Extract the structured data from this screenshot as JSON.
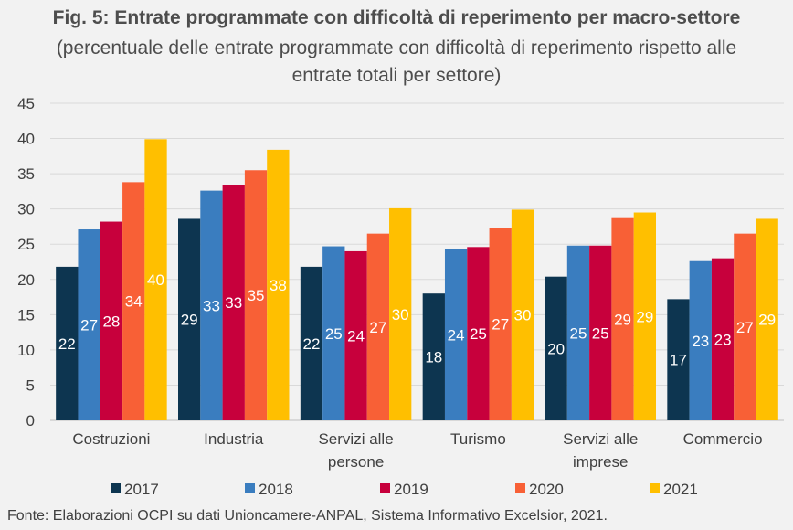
{
  "title": "Fig. 5: Entrate programmate con difficoltà di reperimento per macro-settore",
  "subtitle": "(percentuale delle entrate programmate con difficoltà di reperimento rispetto alle entrate totali per settore)",
  "source": "Fonte: Elaborazioni OCPI su dati Unioncamere-ANPAL, Sistema Informativo Excelsior, 2021.",
  "chart_data": {
    "type": "bar",
    "title": "Fig. 5: Entrate programmate con difficoltà di reperimento per macro-settore",
    "subtitle": "(percentuale delle entrate programmate con difficoltà di reperimento rispetto alle entrate totali per settore)",
    "categories": [
      [
        "Costruzioni"
      ],
      [
        "Industria"
      ],
      [
        "Servizi alle",
        "persone"
      ],
      [
        "Turismo"
      ],
      [
        "Servizi alle",
        "imprese"
      ],
      [
        "Commercio"
      ]
    ],
    "series": [
      {
        "name": "2017",
        "color": "#0d3550",
        "values": [
          21.8,
          28.6,
          21.8,
          18.0,
          20.4,
          17.2
        ]
      },
      {
        "name": "2018",
        "color": "#3a7dbf",
        "values": [
          27.1,
          32.6,
          24.7,
          24.3,
          24.8,
          22.6
        ]
      },
      {
        "name": "2019",
        "color": "#c7003c",
        "values": [
          28.2,
          33.4,
          24.0,
          24.6,
          24.8,
          23.0
        ]
      },
      {
        "name": "2020",
        "color": "#f86036",
        "values": [
          33.8,
          35.5,
          26.5,
          27.3,
          28.7,
          26.5
        ]
      },
      {
        "name": "2021",
        "color": "#ffbf00",
        "values": [
          39.9,
          38.4,
          30.1,
          29.9,
          29.5,
          28.6
        ]
      }
    ],
    "data_labels": [
      [
        "22",
        "29",
        "22",
        "18",
        "20",
        "17"
      ],
      [
        "27",
        "33",
        "25",
        "24",
        "25",
        "23"
      ],
      [
        "28",
        "33",
        "24",
        "25",
        "25",
        "23"
      ],
      [
        "34",
        "35",
        "27",
        "27",
        "29",
        "27"
      ],
      [
        "40",
        "38",
        "30",
        "30",
        "29",
        "29"
      ]
    ],
    "xlabel": "",
    "ylabel": "",
    "ylim": [
      0,
      45
    ],
    "yticks": [
      "0",
      "5",
      "10",
      "15",
      "20",
      "25",
      "30",
      "35",
      "40",
      "45"
    ],
    "grid": true,
    "legend_position": "bottom"
  }
}
